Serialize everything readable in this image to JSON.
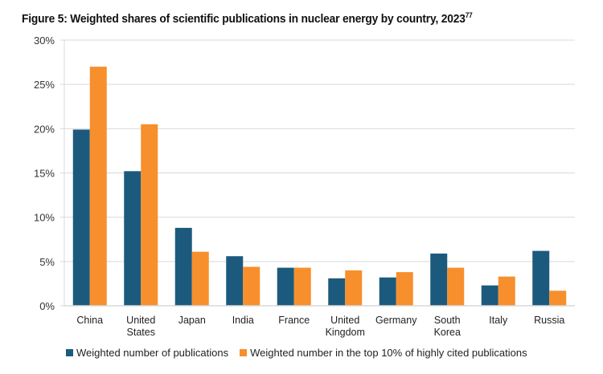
{
  "chart_data": {
    "type": "bar",
    "title": "Figure 5: Weighted shares of scientific publications in nuclear energy by country, 2023",
    "title_footnote": "77",
    "xlabel": "",
    "ylabel": "",
    "ylim": [
      0,
      30
    ],
    "yticks": [
      0,
      5,
      10,
      15,
      20,
      25,
      30
    ],
    "ytick_labels": [
      "0%",
      "5%",
      "10%",
      "15%",
      "20%",
      "25%",
      "30%"
    ],
    "grid": true,
    "legend_position": "bottom",
    "categories": [
      "China",
      "United States",
      "Japan",
      "India",
      "France",
      "United Kingdom",
      "Germany",
      "South Korea",
      "Italy",
      "Russia"
    ],
    "category_lines": [
      [
        "China"
      ],
      [
        "United",
        "States"
      ],
      [
        "Japan"
      ],
      [
        "India"
      ],
      [
        "France"
      ],
      [
        "United",
        "Kingdom"
      ],
      [
        "Germany"
      ],
      [
        "South",
        "Korea"
      ],
      [
        "Italy"
      ],
      [
        "Russia"
      ]
    ],
    "series": [
      {
        "name": "Weighted number of publications",
        "color": "#1c5a7d",
        "values": [
          19.9,
          15.2,
          8.8,
          5.6,
          4.3,
          3.1,
          3.2,
          5.9,
          2.3,
          6.2
        ]
      },
      {
        "name": "Weighted number in the top 10% of highly cited publications",
        "color": "#f78f2c",
        "values": [
          27.0,
          20.5,
          6.1,
          4.4,
          4.3,
          4.0,
          3.8,
          4.3,
          3.3,
          1.7
        ]
      }
    ]
  }
}
